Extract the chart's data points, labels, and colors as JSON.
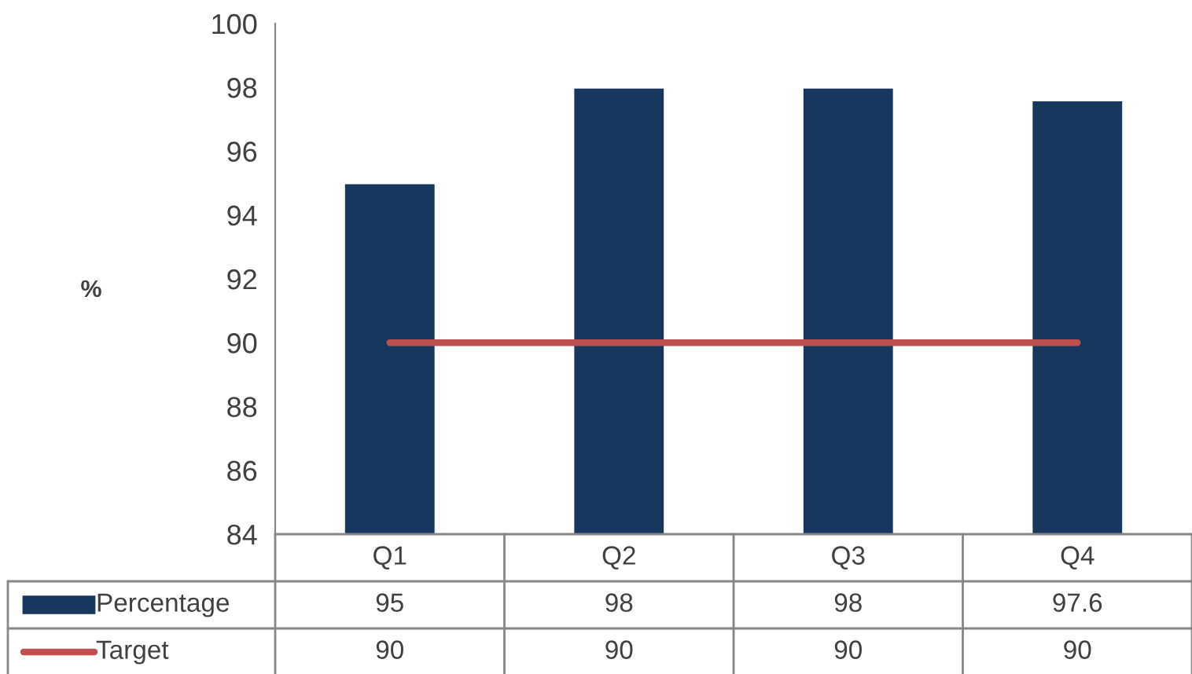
{
  "chart_data": {
    "type": "bar",
    "ylabel": "%",
    "categories": [
      "Q1",
      "Q2",
      "Q3",
      "Q4"
    ],
    "series": [
      {
        "name": "Percentage",
        "color": "#17375e",
        "values": [
          95,
          98,
          98,
          97.6
        ]
      },
      {
        "name": "Target",
        "type": "line",
        "color": "#c0504d",
        "values": [
          90,
          90,
          90,
          90
        ]
      }
    ],
    "ylim": [
      84,
      100
    ],
    "yticks": [
      84,
      86,
      88,
      90,
      92,
      94,
      96,
      98,
      100
    ],
    "data_labels": true,
    "legend": "bottom",
    "grid": false
  }
}
